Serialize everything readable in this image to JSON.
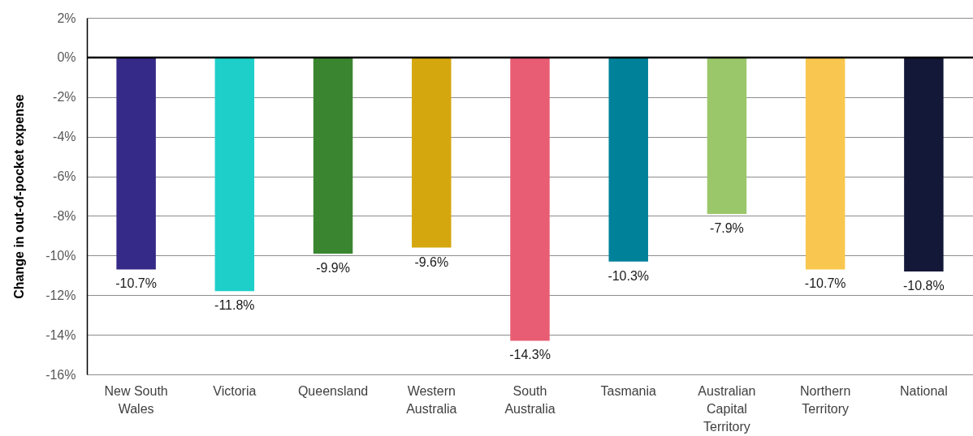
{
  "chart_data": {
    "type": "bar",
    "ylabel": "Change in out-of-pocket expense",
    "categories": [
      "New South Wales",
      "Victoria",
      "Queensland",
      "Western Australia",
      "South Australia",
      "Tasmania",
      "Australian Capital Territory",
      "Northern Territory",
      "National"
    ],
    "values": [
      -10.7,
      -11.8,
      -9.9,
      -9.6,
      -14.3,
      -10.3,
      -7.9,
      -10.7,
      -10.8
    ],
    "colors": [
      "#352a87",
      "#1ecfc9",
      "#3a8630",
      "#d5a70e",
      "#e85d73",
      "#00819a",
      "#9bc76b",
      "#f9c74f",
      "#141838"
    ],
    "value_labels": [
      "-10.7%",
      "-11.8%",
      "-9.9%",
      "-9.6%",
      "-14.3%",
      "-10.3%",
      "-7.9%",
      "-10.7%",
      "-10.8%"
    ],
    "ylim": [
      -16,
      2
    ],
    "yticks": [
      {
        "value": 2,
        "label": "2%"
      },
      {
        "value": 0,
        "label": "0%"
      },
      {
        "value": -2,
        "label": "-2%"
      },
      {
        "value": -4,
        "label": "-4%"
      },
      {
        "value": -6,
        "label": "-6%"
      },
      {
        "value": -8,
        "label": "-8%"
      },
      {
        "value": -10,
        "label": "-10%"
      },
      {
        "value": -12,
        "label": "-12%"
      },
      {
        "value": -14,
        "label": "-14%"
      },
      {
        "value": -16,
        "label": "-16%"
      }
    ],
    "grid": "y",
    "ref_lines": [
      {
        "axis": "y",
        "value": 0,
        "color": "#000000"
      }
    ]
  }
}
